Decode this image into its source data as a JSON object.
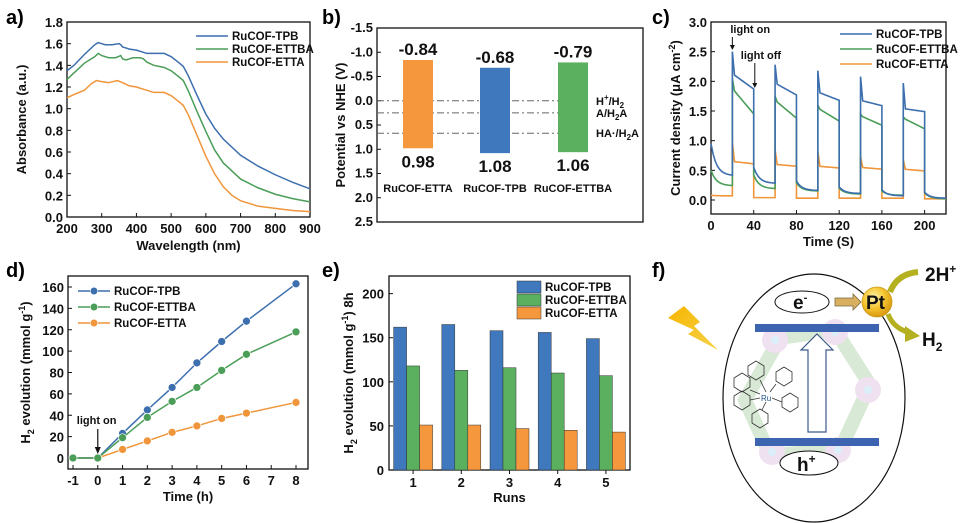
{
  "colors": {
    "tpb": "#3d6fae",
    "ettba": "#4a9e58",
    "etta": "#f0953a",
    "tpb_bar": "#3f78bd",
    "ettba_bar": "#5ab05f",
    "etta_bar": "#f5973d"
  },
  "chart_data": [
    {
      "id": "a",
      "panel_label": "a)",
      "type": "line",
      "title": "",
      "xlabel": "Wavelength (nm)",
      "ylabel": "Absorbance (a.u.)",
      "xlim": [
        200,
        900
      ],
      "ylim": [
        0,
        1.8
      ],
      "xticks": [
        200,
        300,
        400,
        500,
        600,
        700,
        800,
        900
      ],
      "yticks": [
        "0.0",
        "0.2",
        "0.4",
        "0.6",
        "0.8",
        "1.0",
        "1.2",
        "1.4",
        "1.6",
        "1.8"
      ],
      "legend": "top-right",
      "series": [
        {
          "name": "RuCOF-TPB",
          "color_key": "tpb",
          "x": [
            200,
            220,
            250,
            280,
            290,
            300,
            310,
            330,
            350,
            355,
            360,
            380,
            400,
            420,
            430,
            450,
            480,
            500,
            520,
            535,
            550,
            575,
            600,
            625,
            650,
            700,
            750,
            800,
            850,
            900
          ],
          "y": [
            1.35,
            1.4,
            1.5,
            1.59,
            1.61,
            1.6,
            1.59,
            1.59,
            1.6,
            1.59,
            1.57,
            1.55,
            1.54,
            1.52,
            1.51,
            1.51,
            1.51,
            1.48,
            1.43,
            1.39,
            1.3,
            1.12,
            0.95,
            0.82,
            0.72,
            0.57,
            0.47,
            0.39,
            0.32,
            0.26
          ]
        },
        {
          "name": "RuCOF-ETTBA",
          "color_key": "ettba",
          "x": [
            200,
            210,
            250,
            280,
            290,
            300,
            320,
            340,
            355,
            360,
            370,
            390,
            410,
            420,
            430,
            450,
            480,
            500,
            520,
            535,
            550,
            575,
            600,
            625,
            650,
            700,
            750,
            800,
            850,
            900
          ],
          "y": [
            1.27,
            1.3,
            1.42,
            1.48,
            1.51,
            1.49,
            1.47,
            1.47,
            1.49,
            1.46,
            1.45,
            1.47,
            1.47,
            1.46,
            1.43,
            1.4,
            1.38,
            1.35,
            1.3,
            1.26,
            1.16,
            0.97,
            0.79,
            0.62,
            0.5,
            0.35,
            0.27,
            0.21,
            0.17,
            0.14
          ]
        },
        {
          "name": "RuCOF-ETTA",
          "color_key": "etta",
          "x": [
            200,
            220,
            250,
            270,
            285,
            300,
            320,
            345,
            360,
            380,
            400,
            420,
            450,
            480,
            500,
            520,
            535,
            550,
            575,
            600,
            625,
            650,
            675,
            700,
            750,
            800,
            850,
            900
          ],
          "y": [
            1.1,
            1.13,
            1.17,
            1.23,
            1.26,
            1.25,
            1.24,
            1.26,
            1.24,
            1.21,
            1.2,
            1.18,
            1.15,
            1.15,
            1.12,
            1.07,
            1.03,
            0.94,
            0.75,
            0.56,
            0.4,
            0.28,
            0.2,
            0.15,
            0.1,
            0.08,
            0.06,
            0.05
          ]
        }
      ]
    },
    {
      "id": "b",
      "panel_label": "b)",
      "type": "bar",
      "title": "",
      "xlabel": "",
      "ylabel": "Potential vs NHE (V)",
      "ylim": [
        -1.5,
        2.5
      ],
      "y_inverted": true,
      "yticks": [
        "-1.5",
        "-1.0",
        "-0.5",
        "0.0",
        "0.5",
        "1.0",
        "1.5",
        "2.0",
        "2.5"
      ],
      "categories": [
        "RuCOF-ETTA",
        "RuCOF-TPB",
        "RuCOF-ETTBA"
      ],
      "bars": [
        {
          "name": "RuCOF-ETTA",
          "color_key": "etta_bar",
          "cb": -0.84,
          "vb": 0.98,
          "cb_label": "-0.84",
          "vb_label": "0.98"
        },
        {
          "name": "RuCOF-TPB",
          "color_key": "tpb_bar",
          "cb": -0.68,
          "vb": 1.08,
          "cb_label": "-0.68",
          "vb_label": "1.08"
        },
        {
          "name": "RuCOF-ETTBA",
          "color_key": "ettba_bar",
          "cb": -0.79,
          "vb": 1.06,
          "cb_label": "-0.79",
          "vb_label": "1.06"
        }
      ],
      "reference_lines": [
        {
          "value": 0.0,
          "label_main": "H",
          "label_sup": "+",
          "label_rest": "/H",
          "label_sub": "2",
          "label_end": ""
        },
        {
          "value": 0.25,
          "label_main": "A/H",
          "label_sup": "",
          "label_rest": "",
          "label_sub": "2",
          "label_end": "A"
        },
        {
          "value": 0.67,
          "label_main": "HA·/H",
          "label_sup": "",
          "label_rest": "",
          "label_sub": "2",
          "label_end": "A"
        }
      ]
    },
    {
      "id": "c",
      "panel_label": "c)",
      "type": "line",
      "title": "",
      "xlabel": "Time (S)",
      "ylabel_main": "Current density (μA cm",
      "ylabel_sup": "-2",
      "ylabel_end": ")",
      "xlim": [
        0,
        220
      ],
      "ylim": [
        -0.25,
        3.0
      ],
      "xticks": [
        0,
        40,
        80,
        120,
        160,
        200
      ],
      "yticks": [
        "0.0",
        "0.5",
        "1.0",
        "1.5",
        "2.0",
        "2.5",
        "3.0"
      ],
      "legend": "top-right",
      "annotations": [
        {
          "text": "light on",
          "x": 20,
          "y": 2.55
        },
        {
          "text": "light off",
          "x": 41,
          "y": 1.9
        }
      ],
      "light_on_intervals": [
        [
          20,
          40
        ],
        [
          60,
          80
        ],
        [
          100,
          120
        ],
        [
          140,
          160
        ],
        [
          180,
          200
        ]
      ],
      "series": [
        {
          "name": "RuCOF-TPB",
          "color_key": "tpb",
          "on": [
            {
              "spike": 2.5,
              "start": 2.13,
              "end": 1.87
            },
            {
              "spike": 2.28,
              "start": 1.97,
              "end": 1.77
            },
            {
              "spike": 2.18,
              "start": 1.82,
              "end": 1.68
            },
            {
              "spike": 2.08,
              "start": 1.68,
              "end": 1.59
            },
            {
              "spike": 1.97,
              "start": 1.54,
              "end": 1.49
            }
          ],
          "off": [
            {
              "start": 0.95,
              "end": 0.41
            },
            {
              "start": 0.55,
              "end": 0.28
            },
            {
              "start": 0.32,
              "end": 0.16
            },
            {
              "start": 0.22,
              "end": 0.11
            },
            {
              "start": 0.17,
              "end": 0.07
            },
            {
              "start": 0.13,
              "end": 0.03
            }
          ]
        },
        {
          "name": "RuCOF-ETTBA",
          "color_key": "ettba",
          "on": [
            {
              "spike": 2.05,
              "start": 1.88,
              "end": 1.45
            },
            {
              "spike": 1.75,
              "start": 1.68,
              "end": 1.38
            },
            {
              "spike": 1.6,
              "start": 1.55,
              "end": 1.33
            },
            {
              "spike": 1.45,
              "start": 1.42,
              "end": 1.26
            },
            {
              "spike": 1.4,
              "start": 1.38,
              "end": 1.2
            }
          ],
          "off": [
            {
              "start": 0.5,
              "end": 0.24
            },
            {
              "start": 0.42,
              "end": 0.19
            },
            {
              "start": 0.29,
              "end": 0.15
            },
            {
              "start": 0.2,
              "end": 0.1
            },
            {
              "start": 0.15,
              "end": 0.08
            },
            {
              "start": 0.12,
              "end": 0.02
            }
          ]
        },
        {
          "name": "RuCOF-ETTA",
          "color_key": "etta",
          "on": [
            {
              "spike": 0.97,
              "start": 0.65,
              "end": 0.61
            },
            {
              "spike": 0.85,
              "start": 0.6,
              "end": 0.57
            },
            {
              "spike": 0.82,
              "start": 0.57,
              "end": 0.54
            },
            {
              "spike": 0.73,
              "start": 0.55,
              "end": 0.52
            },
            {
              "spike": 0.68,
              "start": 0.52,
              "end": 0.49
            }
          ],
          "off": [
            {
              "start": 0.08,
              "end": 0.07
            },
            {
              "start": 0.04,
              "end": 0.04
            },
            {
              "start": 0.03,
              "end": 0.03
            },
            {
              "start": 0.03,
              "end": 0.03
            },
            {
              "start": 0.03,
              "end": 0.03
            },
            {
              "start": 0.02,
              "end": 0.02
            }
          ]
        }
      ]
    },
    {
      "id": "d",
      "panel_label": "d)",
      "type": "line",
      "title": "",
      "xlabel": "Time (h)",
      "ylabel_main": "H",
      "ylabel_sub": "2",
      "ylabel_rest": " evolution (mmol g",
      "ylabel_sup": "-1",
      "ylabel_end": ")",
      "xlim": [
        -1.2,
        8.3
      ],
      "ylim": [
        -10,
        170
      ],
      "xticks": [
        -1,
        0,
        1,
        2,
        3,
        4,
        5,
        6,
        7,
        8
      ],
      "yticks": [
        0,
        20,
        40,
        60,
        80,
        100,
        120,
        140,
        160
      ],
      "legend": "top-left",
      "annotations": [
        {
          "text": "light on",
          "x": 0,
          "y": 30
        }
      ],
      "x": [
        -1,
        0,
        1,
        2,
        3,
        4,
        5,
        6,
        8
      ],
      "series": [
        {
          "name": "RuCOF-TPB",
          "color_key": "tpb",
          "y": [
            0,
            0,
            23,
            45,
            66,
            89,
            109,
            128,
            163
          ]
        },
        {
          "name": "RuCOF-ETTBA",
          "color_key": "ettba",
          "y": [
            0,
            0,
            19,
            38,
            53,
            66,
            82,
            97,
            118
          ]
        },
        {
          "name": "RuCOF-ETTA",
          "color_key": "etta",
          "y": [
            0,
            0,
            8,
            16,
            24,
            30,
            37,
            42,
            52
          ]
        }
      ]
    },
    {
      "id": "e",
      "panel_label": "e)",
      "type": "bar",
      "title": "",
      "xlabel": "Runs",
      "ylabel_main": "H",
      "ylabel_sub": "2",
      "ylabel_rest": " evolution (mmol g",
      "ylabel_sup": "-1",
      "ylabel_end": ") 8h",
      "ylim": [
        0,
        220
      ],
      "yticks": [
        0,
        50,
        100,
        150,
        200
      ],
      "categories": [
        "1",
        "2",
        "3",
        "4",
        "5"
      ],
      "legend": "top-right",
      "series": [
        {
          "name": "RuCOF-TPB",
          "color_key": "tpb_bar",
          "values": [
            162,
            165,
            158,
            156,
            149
          ]
        },
        {
          "name": "RuCOF-ETTBA",
          "color_key": "ettba_bar",
          "values": [
            118,
            113,
            116,
            110,
            107
          ]
        },
        {
          "name": "RuCOF-ETTA",
          "color_key": "etta_bar",
          "values": [
            51,
            51,
            47,
            45,
            43
          ]
        }
      ]
    }
  ],
  "diagram_f": {
    "panel_label": "f)",
    "electron_label": "e",
    "electron_sup": "-",
    "hole_label": "h",
    "hole_sup": "+",
    "catalyst_label": "Pt",
    "proton_label": "2H",
    "proton_sup": "+",
    "product_label": "H",
    "product_sub": "2",
    "complex_metal_label": "Ru",
    "complex_n_label": "N"
  }
}
